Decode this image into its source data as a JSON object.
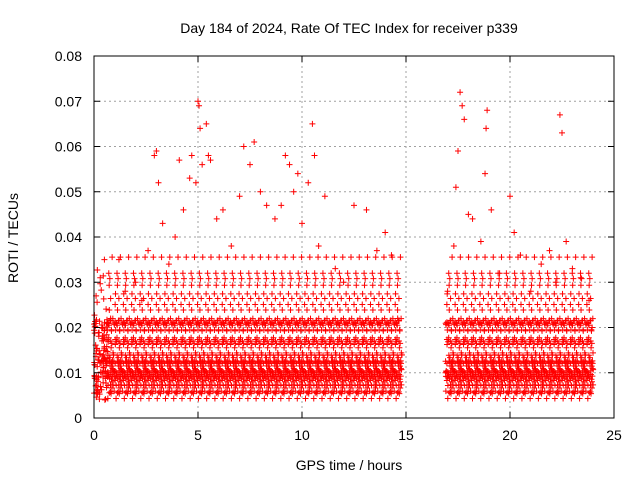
{
  "chart_data": {
    "type": "scatter",
    "title": "Day 184 of 2024, Rate Of TEC Index for receiver p339",
    "xlabel": "GPS time / hours",
    "ylabel": "ROTI / TECUs",
    "xlim": [
      0,
      25
    ],
    "ylim": [
      0,
      0.08
    ],
    "x_ticks": [
      0,
      5,
      10,
      15,
      20,
      25
    ],
    "x_tick_labels": [
      "0",
      "5",
      "10",
      "15",
      "20",
      "25"
    ],
    "y_ticks": [
      0,
      0.01,
      0.02,
      0.03,
      0.04,
      0.05,
      0.06,
      0.07,
      0.08
    ],
    "y_tick_labels": [
      "0",
      "0.01",
      "0.02",
      "0.03",
      "0.04",
      "0.05",
      "0.06",
      "0.07",
      "0.08"
    ],
    "grid": true,
    "marker": "+",
    "color": "#ff0000",
    "data_gap_hours": [
      14.8,
      16.9
    ],
    "series": [
      {
        "name": "ROTI",
        "points": [
          [
            0.1,
            0.027
          ],
          [
            0.3,
            0.031
          ],
          [
            0.5,
            0.035
          ],
          [
            0.8,
            0.022
          ],
          [
            1.2,
            0.035
          ],
          [
            1.5,
            0.028
          ],
          [
            2.0,
            0.03
          ],
          [
            2.3,
            0.026
          ],
          [
            2.6,
            0.037
          ],
          [
            2.9,
            0.058
          ],
          [
            3.0,
            0.059
          ],
          [
            3.1,
            0.052
          ],
          [
            3.3,
            0.043
          ],
          [
            3.6,
            0.034
          ],
          [
            3.9,
            0.04
          ],
          [
            4.1,
            0.057
          ],
          [
            4.3,
            0.046
          ],
          [
            4.6,
            0.053
          ],
          [
            4.7,
            0.058
          ],
          [
            4.9,
            0.052
          ],
          [
            5.0,
            0.07
          ],
          [
            5.05,
            0.069
          ],
          [
            5.1,
            0.064
          ],
          [
            5.2,
            0.056
          ],
          [
            5.4,
            0.065
          ],
          [
            5.5,
            0.058
          ],
          [
            5.6,
            0.057
          ],
          [
            5.9,
            0.044
          ],
          [
            6.2,
            0.046
          ],
          [
            6.6,
            0.038
          ],
          [
            7.0,
            0.049
          ],
          [
            7.2,
            0.06
          ],
          [
            7.5,
            0.056
          ],
          [
            7.7,
            0.061
          ],
          [
            8.0,
            0.05
          ],
          [
            8.3,
            0.047
          ],
          [
            8.7,
            0.044
          ],
          [
            9.0,
            0.047
          ],
          [
            9.2,
            0.058
          ],
          [
            9.4,
            0.056
          ],
          [
            9.6,
            0.05
          ],
          [
            9.8,
            0.054
          ],
          [
            10.0,
            0.043
          ],
          [
            10.3,
            0.052
          ],
          [
            10.5,
            0.065
          ],
          [
            10.6,
            0.058
          ],
          [
            10.8,
            0.038
          ],
          [
            11.1,
            0.049
          ],
          [
            11.6,
            0.033
          ],
          [
            12.0,
            0.03
          ],
          [
            12.5,
            0.047
          ],
          [
            13.1,
            0.046
          ],
          [
            13.6,
            0.037
          ],
          [
            14.0,
            0.041
          ],
          [
            14.3,
            0.036
          ],
          [
            14.6,
            0.022
          ],
          [
            17.0,
            0.028
          ],
          [
            17.3,
            0.038
          ],
          [
            17.4,
            0.051
          ],
          [
            17.5,
            0.059
          ],
          [
            17.6,
            0.072
          ],
          [
            17.7,
            0.069
          ],
          [
            17.8,
            0.066
          ],
          [
            18.0,
            0.045
          ],
          [
            18.2,
            0.044
          ],
          [
            18.6,
            0.039
          ],
          [
            18.8,
            0.054
          ],
          [
            18.85,
            0.064
          ],
          [
            18.9,
            0.068
          ],
          [
            19.1,
            0.046
          ],
          [
            19.5,
            0.032
          ],
          [
            20.0,
            0.049
          ],
          [
            20.2,
            0.041
          ],
          [
            20.5,
            0.036
          ],
          [
            21.0,
            0.028
          ],
          [
            21.5,
            0.034
          ],
          [
            21.9,
            0.037
          ],
          [
            22.2,
            0.03
          ],
          [
            22.4,
            0.067
          ],
          [
            22.5,
            0.063
          ],
          [
            22.7,
            0.039
          ],
          [
            23.0,
            0.033
          ],
          [
            23.4,
            0.031
          ],
          [
            23.8,
            0.026
          ],
          [
            23.95,
            0.02
          ]
        ]
      }
    ]
  }
}
